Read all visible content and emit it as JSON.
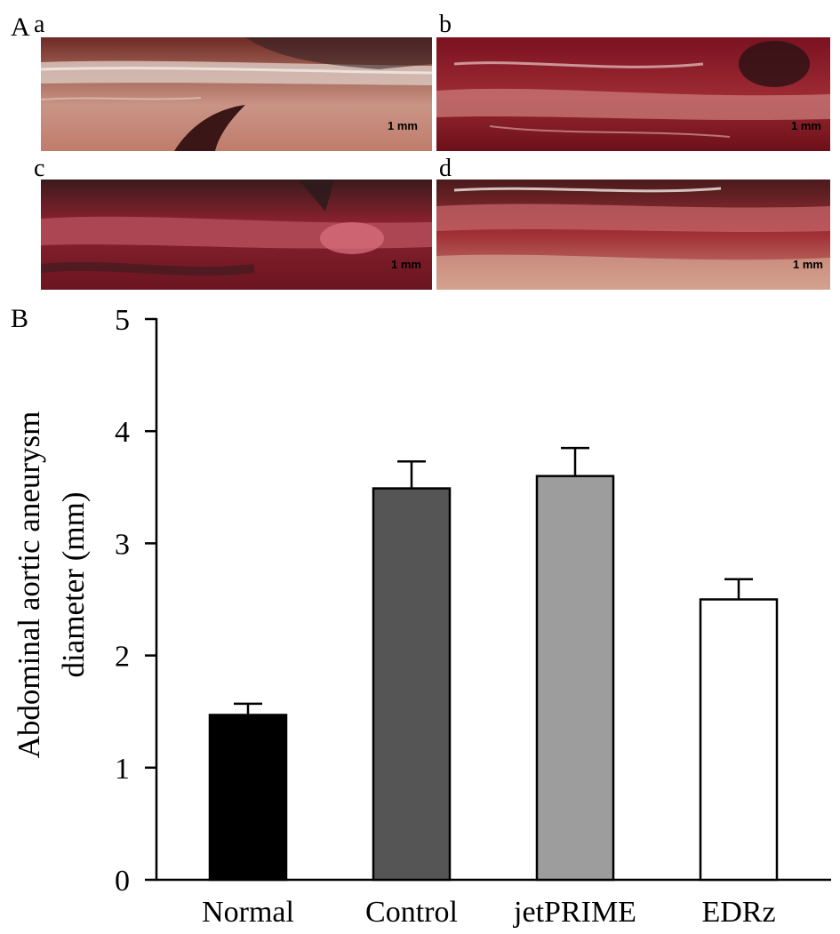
{
  "figure": {
    "panel_a_label": "A",
    "panel_b_label": "B",
    "photos": [
      {
        "letter": "a",
        "scale_label": "1 mm"
      },
      {
        "letter": "b",
        "scale_label": "1 mm"
      },
      {
        "letter": "c",
        "scale_label": "1 mm"
      },
      {
        "letter": "d",
        "scale_label": "1 mm"
      }
    ]
  },
  "chart_data": {
    "type": "bar",
    "title": "",
    "xlabel": "",
    "ylabel": "Abdominal aortic aneurysm diameter (mm)",
    "ylabel_lines": [
      "Abdominal aortic aneurysm",
      "diameter (mm)"
    ],
    "categories": [
      "Normal",
      "Control",
      "jetPRIME",
      "EDRz"
    ],
    "values": [
      1.47,
      3.49,
      3.6,
      2.5
    ],
    "errors": [
      0.1,
      0.24,
      0.25,
      0.18
    ],
    "bar_colors": [
      "#000000",
      "#555555",
      "#9d9d9d",
      "#ffffff"
    ],
    "ylim": [
      0,
      5
    ],
    "yticks": [
      0,
      1,
      2,
      3,
      4,
      5
    ],
    "grid": false,
    "legend": "none"
  }
}
